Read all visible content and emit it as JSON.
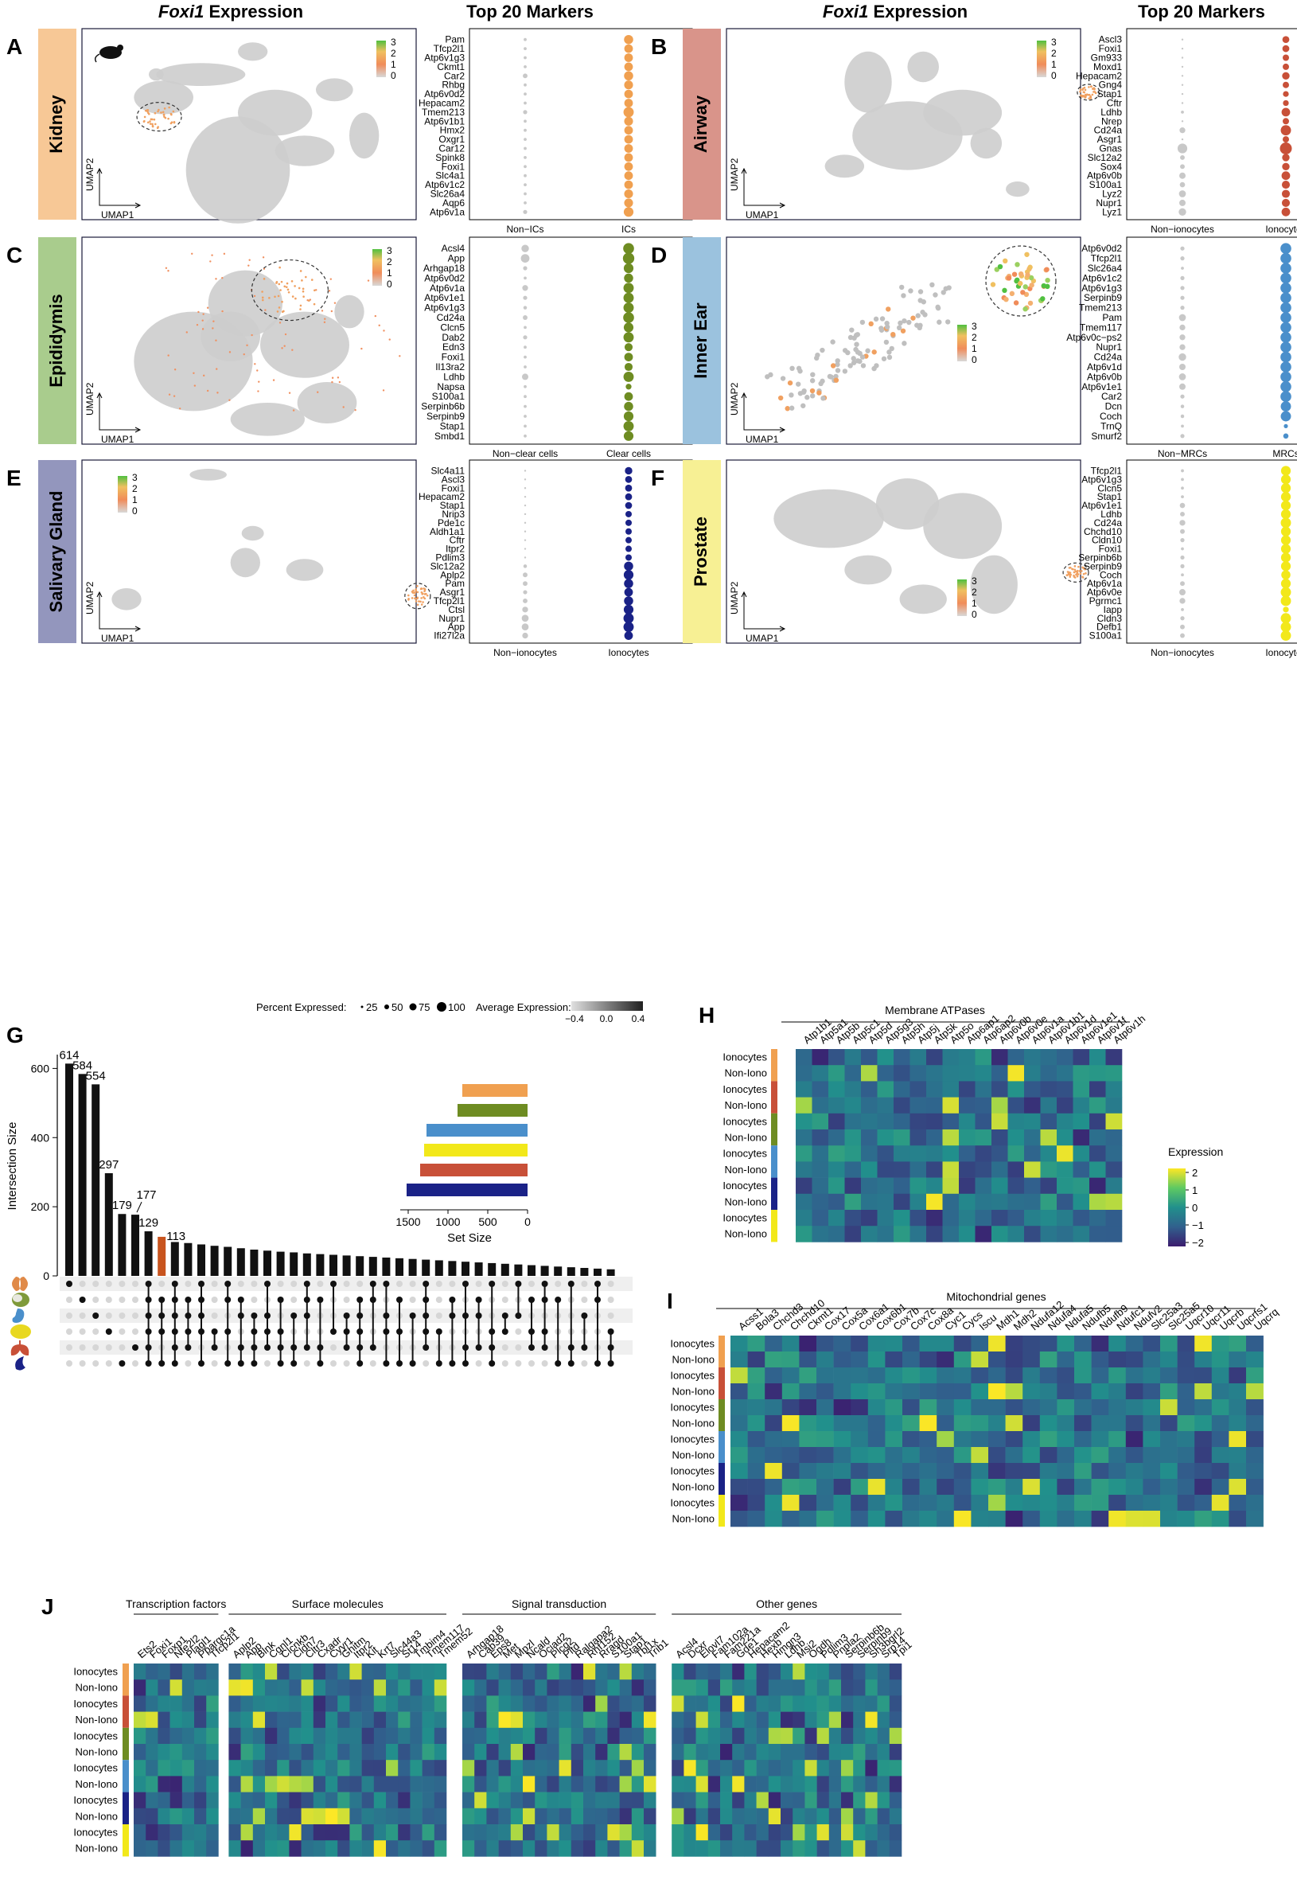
{
  "figure": {
    "header_expr_prefix": "Foxi1",
    "header_expr_suffix": " Expression",
    "header_markers": "Top 20 Markers",
    "umap_x": "UMAP1",
    "umap_y": "UMAP2"
  },
  "colors": {
    "kidney": "#f0a050",
    "airway": "#c85038",
    "epididymis": "#6e8c22",
    "inner_ear": "#4a8fcb",
    "salivary": "#1a2287",
    "prostate": "#f2e81a",
    "kidney_band": "#f7c896",
    "airway_band": "#d9948a",
    "epididymis_band": "#a9cc8d",
    "inner_ear_band": "#9bc2de",
    "salivary_band": "#9396bd",
    "prostate_band": "#f7f094"
  },
  "panels": [
    {
      "letter": "A",
      "tissue": "Kidney",
      "color_key": "kidney",
      "band_key": "kidney_band",
      "col_left": "Non−ICs",
      "col_right": "ICs",
      "scale": [
        "3",
        "2",
        "1",
        "0"
      ],
      "markers": [
        "Pam",
        "Tfcp2l1",
        "Atp6v1g3",
        "Ckmt1",
        "Car2",
        "Rhbg",
        "Atp6v0d2",
        "Hepacam2",
        "Tmem213",
        "Atp6v1b1",
        "Hmx2",
        "Oxgr1",
        "Car12",
        "Spink8",
        "Foxi1",
        "Slc4a1",
        "Atp6v1c2",
        "Slc26a4",
        "Aqp6",
        "Atp6v1a"
      ],
      "left_sizes": [
        0.2,
        0.2,
        0.2,
        0.2,
        0.35,
        0.2,
        0.2,
        0.2,
        0.3,
        0.2,
        0.2,
        0.2,
        0.2,
        0.2,
        0.2,
        0.2,
        0.2,
        0.2,
        0.2,
        0.3
      ],
      "right_sizes": [
        0.75,
        0.7,
        0.7,
        0.7,
        0.75,
        0.72,
        0.7,
        0.7,
        0.85,
        0.72,
        0.7,
        0.7,
        0.7,
        0.7,
        0.7,
        0.7,
        0.7,
        0.72,
        0.72,
        0.8
      ]
    },
    {
      "letter": "B",
      "tissue": "Airway",
      "color_key": "airway",
      "band_key": "airway_band",
      "col_left": "Non−ionocytes",
      "col_right": "Ionocytes",
      "scale": [
        "3",
        "2",
        "1",
        "0"
      ],
      "markers": [
        "Ascl3",
        "Foxi1",
        "Gm933",
        "Moxd1",
        "Hepacam2",
        "Gng4",
        "Stap1",
        "Cftr",
        "Ldhb",
        "Nrep",
        "Cd24a",
        "Asgr1",
        "Gnas",
        "Slc12a2",
        "Sox4",
        "Atp6v0b",
        "S100a1",
        "Lyz2",
        "Nupr1",
        "Lyz1"
      ],
      "left_sizes": [
        0.1,
        0.1,
        0.1,
        0.1,
        0.1,
        0.1,
        0.1,
        0.1,
        0.2,
        0.1,
        0.45,
        0.1,
        0.8,
        0.35,
        0.35,
        0.5,
        0.4,
        0.55,
        0.5,
        0.6
      ],
      "right_sizes": [
        0.55,
        0.55,
        0.5,
        0.5,
        0.6,
        0.5,
        0.45,
        0.45,
        0.7,
        0.5,
        0.85,
        0.5,
        1.0,
        0.6,
        0.6,
        0.7,
        0.65,
        0.65,
        0.65,
        0.7
      ]
    },
    {
      "letter": "C",
      "tissue": "Epididymis",
      "color_key": "epididymis",
      "band_key": "epididymis_band",
      "col_left": "Non−clear cells",
      "col_right": "Clear cells",
      "scale": [
        "3",
        "2",
        "1",
        "0"
      ],
      "markers": [
        "Acsl4",
        "App",
        "Arhgap18",
        "Atp6v0d2",
        "Atp6v1a",
        "Atp6v1e1",
        "Atp6v1g3",
        "Cd24a",
        "Clcn5",
        "Dab2",
        "Edn3",
        "Foxi1",
        "Il13ra2",
        "Ldhb",
        "Napsa",
        "S100a1",
        "Serpinb6b",
        "Serpinb9",
        "Stap1",
        "Smbd1"
      ],
      "left_sizes": [
        0.6,
        0.7,
        0.3,
        0.2,
        0.45,
        0.3,
        0.25,
        0.35,
        0.2,
        0.3,
        0.2,
        0.2,
        0.2,
        0.5,
        0.2,
        0.2,
        0.2,
        0.2,
        0.2,
        0.2
      ],
      "right_sizes": [
        0.9,
        0.95,
        0.8,
        0.75,
        0.85,
        0.85,
        0.85,
        0.9,
        0.8,
        0.85,
        0.65,
        0.7,
        0.65,
        0.85,
        0.45,
        0.7,
        0.75,
        0.8,
        0.85,
        0.8
      ]
    },
    {
      "letter": "D",
      "tissue": "Inner Ear",
      "color_key": "inner_ear",
      "band_key": "inner_ear_band",
      "col_left": "Non−MRCs",
      "col_right": "MRCs",
      "scale": [
        "3",
        "2",
        "1",
        "0"
      ],
      "markers": [
        "Atp6v0d2",
        "Tfcp2l1",
        "Slc26a4",
        "Atp6v1c2",
        "Atp6v1g3",
        "Serpinb9",
        "Tmem213",
        "Pam",
        "Tmem117",
        "Atp6v0c−ps2",
        "Nupr1",
        "Cd24a",
        "Atp6v1d",
        "Atp6v0b",
        "Atp6v1e1",
        "Car2",
        "Dcn",
        "Coch",
        "TrnQ",
        "Smurf2"
      ],
      "left_sizes": [
        0.3,
        0.3,
        0.2,
        0.3,
        0.3,
        0.3,
        0.3,
        0.55,
        0.45,
        0.45,
        0.45,
        0.6,
        0.5,
        0.55,
        0.5,
        0.3,
        0.25,
        0.25,
        0.2,
        0.3
      ],
      "right_sizes": [
        0.9,
        0.9,
        0.9,
        0.9,
        0.9,
        0.9,
        0.9,
        0.9,
        0.9,
        0.9,
        0.9,
        0.9,
        0.9,
        0.9,
        0.9,
        0.9,
        0.85,
        0.85,
        0.3,
        0.4
      ]
    },
    {
      "letter": "E",
      "tissue": "Salivary Gland",
      "color_key": "salivary",
      "band_key": "salivary_band",
      "col_left": "Non−ionocytes",
      "col_right": "Ionocytes",
      "scale": [
        "3",
        "2",
        "1",
        "0"
      ],
      "markers": [
        "Slc4a11",
        "Ascl3",
        "Foxi1",
        "Hepacam2",
        "Stap1",
        "Nrip3",
        "Pde1c",
        "Aldh1a1",
        "Cftr",
        "Itpr2",
        "Pdlim3",
        "Slc12a2",
        "Aplp2",
        "Pam",
        "Asgr1",
        "Tfcp2l1",
        "Ctsl",
        "Nupr1",
        "App",
        "Ifi27l2a"
      ],
      "left_sizes": [
        0.1,
        0.1,
        0.1,
        0.1,
        0.1,
        0.1,
        0.1,
        0.1,
        0.1,
        0.1,
        0.1,
        0.25,
        0.35,
        0.35,
        0.3,
        0.35,
        0.45,
        0.55,
        0.55,
        0.45
      ],
      "right_sizes": [
        0.6,
        0.55,
        0.55,
        0.55,
        0.55,
        0.5,
        0.5,
        0.5,
        0.5,
        0.5,
        0.5,
        0.75,
        0.8,
        0.75,
        0.7,
        0.75,
        0.8,
        0.85,
        0.85,
        0.7
      ]
    },
    {
      "letter": "F",
      "tissue": "Prostate",
      "color_key": "prostate",
      "band_key": "prostate_band",
      "col_left": "Non−ionocytes",
      "col_right": "Ionocytes",
      "scale": [
        "3",
        "2",
        "1",
        "0"
      ],
      "markers": [
        "Tfcp2l1",
        "Atp6v1g3",
        "Clcn5",
        "Stap1",
        "Atp6v1e1",
        "Ldhb",
        "Cd24a",
        "Chchd10",
        "Cldn10",
        "Foxi1",
        "Serpinb6b",
        "Serpinb9",
        "Coch",
        "Atp6v1a",
        "Atp6v0e",
        "Pgrmc1",
        "Iapp",
        "Cldn3",
        "Defb1",
        "S100a1"
      ],
      "left_sizes": [
        0.2,
        0.2,
        0.2,
        0.2,
        0.4,
        0.35,
        0.45,
        0.35,
        0.3,
        0.2,
        0.3,
        0.3,
        0.2,
        0.35,
        0.5,
        0.45,
        0.2,
        0.3,
        0.35,
        0.35
      ],
      "right_sizes": [
        0.8,
        0.8,
        0.8,
        0.8,
        0.8,
        0.8,
        0.85,
        0.8,
        0.8,
        0.8,
        0.8,
        0.8,
        0.75,
        0.8,
        0.85,
        0.85,
        0.45,
        0.85,
        0.85,
        0.85
      ]
    }
  ],
  "legend_dot": {
    "pct_label": "Percent Expressed:",
    "pct_values": [
      "25",
      "50",
      "75",
      "100"
    ],
    "avg_label": "Average Expression:",
    "avg_ticks": [
      "−0.4",
      "0.0",
      "0.4"
    ]
  },
  "panel_g": {
    "letter": "G",
    "ylabel": "Intersection Size",
    "yticks": [
      "0",
      "200",
      "400",
      "600"
    ],
    "ylim": [
      0,
      640
    ],
    "bars": [
      614,
      584,
      554,
      297,
      179,
      177,
      129,
      113,
      98,
      95,
      91,
      87,
      84,
      80,
      76,
      73,
      70,
      68,
      65,
      63,
      61,
      59,
      57,
      55,
      53,
      51,
      49,
      47,
      45,
      43,
      41,
      39,
      37,
      35,
      33,
      31,
      29,
      27,
      25,
      23,
      21,
      19
    ],
    "labeled_bars": [
      0,
      1,
      2,
      3,
      4,
      5,
      6,
      7
    ],
    "bar_labels": [
      "614",
      "584",
      "554",
      "297",
      "179",
      "177",
      "129",
      "113"
    ],
    "set_size_label": "Set Size",
    "set_ticks": [
      "1500",
      "1000",
      "500",
      "0"
    ],
    "set_sizes": [
      820,
      880,
      1270,
      1300,
      1350,
      1520
    ],
    "set_colors": [
      "kidney",
      "epididymis",
      "inner_ear",
      "prostate",
      "airway",
      "salivary"
    ],
    "organ_icons": [
      "kidney-icon",
      "epididymis-icon",
      "inner-ear-icon",
      "prostate-icon",
      "lung-icon",
      "salivary-gland-icon"
    ],
    "organ_colors": [
      "#e08a48",
      "#7f9a3a",
      "#4a8fcb",
      "#e8d820",
      "#c85038",
      "#1a2287"
    ]
  },
  "panel_h": {
    "letter": "H",
    "title": "Membrane ATPases",
    "genes": [
      "Atp1b1",
      "Atp5a1",
      "Atp5b",
      "Atp5c1",
      "Atp5d",
      "Atp5g3",
      "Atp5h",
      "Atp5j",
      "Atp5k",
      "Atp5o",
      "Atp6ap1",
      "Atp6ap2",
      "Atp6v0b",
      "Atp6v0e",
      "Atp6v1a",
      "Atp6v1b1",
      "Atp6v1d",
      "Atp6v1e1",
      "Atp6v1f",
      "Atp6v1h"
    ],
    "legend_title": "Expression",
    "legend_ticks": [
      "2",
      "1",
      "0",
      "−1",
      "−2"
    ]
  },
  "panel_i": {
    "letter": "I",
    "title": "Mitochondrial genes",
    "genes": [
      "Acss1",
      "Bola3",
      "Chchd3",
      "Chchd10",
      "Ckmt1",
      "Cox17",
      "Cox5a",
      "Cox6a1",
      "Cox6b1",
      "Cox7b",
      "Cox7c",
      "Cox8a",
      "Cyc1",
      "Cycs",
      "Iscu",
      "Mdh1",
      "Mdh2",
      "Ndufa12",
      "Ndufa4",
      "Ndufa5",
      "Ndufb5",
      "Ndufb9",
      "Ndufc1",
      "Ndufv2",
      "Slc25a3",
      "Slc25a5",
      "Uqcr10",
      "Uqcr11",
      "Uqcrb",
      "Uqcrfs1",
      "Uqcrq"
    ]
  },
  "panel_j": {
    "letter": "J",
    "groups": [
      {
        "title": "Transcription factors",
        "genes": [
          "Ets2",
          "Foxi1",
          "Foxp1",
          "Nfe2l2",
          "Plagl1",
          "Ppargc1a",
          "Tfcp2l1"
        ]
      },
      {
        "title": "Surface molecules",
        "genes": [
          "Aplp2",
          "App",
          "Blnk",
          "Cgnl1",
          "Clcnkb",
          "Cldn7",
          "Cltr3",
          "Cxadr",
          "Cyyr1",
          "Ghitm",
          "Itpr2",
          "Kit",
          "Krt7",
          "Slc44a3",
          "St14",
          "Tmbim4",
          "Tmem117",
          "Tmem52"
        ]
      },
      {
        "title": "Signal transduction",
        "genes": [
          "Arhgap18",
          "Cab39",
          "Eps8",
          "Met",
          "Mpzl",
          "Ncald",
          "Ociad2",
          "Plcg2",
          "Pitd",
          "Ralgapa2",
          "Rnf152",
          "Rragd",
          "S100a1",
          "Stap1",
          "Tbl1x",
          "Trib1"
        ]
      },
      {
        "title": "Other genes",
        "genes": [
          "Acsl4",
          "Dcxr",
          "Elovl7",
          "Fam102a",
          "Fam221a",
          "Gde1",
          "Hepacam2",
          "Hexb",
          "Hmgn3",
          "Ldhb",
          "Msi2",
          "Ogdh",
          "Pdlim3",
          "Pnpla2",
          "Serpinb6b",
          "Serpinb9",
          "Sh3bgrl2",
          "Srp14",
          "Tpi1"
        ]
      }
    ]
  },
  "row_labels": [
    "Ionocytes",
    "Non-Iono",
    "Ionocytes",
    "Non-Iono",
    "Ionocytes",
    "Non-Iono",
    "Ionocytes",
    "Non-Iono",
    "Ionocytes",
    "Non-Iono",
    "Ionocytes",
    "Non-Iono"
  ],
  "row_colors": [
    "kidney",
    "airway",
    "epididymis",
    "inner_ear",
    "salivary",
    "prostate"
  ]
}
